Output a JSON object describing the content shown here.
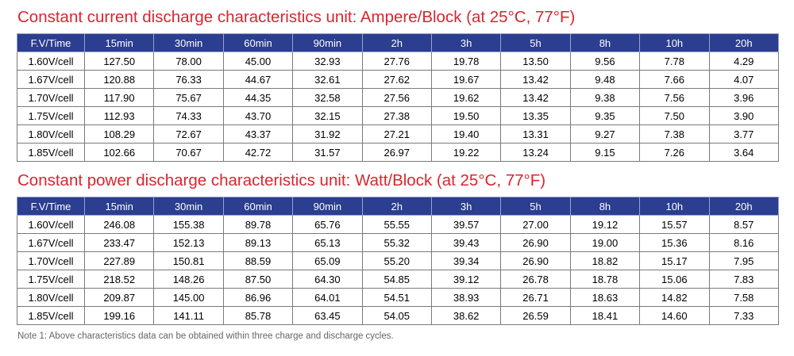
{
  "current_table": {
    "title": "Constant current discharge characteristics unit: Ampere/Block (at 25°C, 77°F)",
    "headers": [
      "F.V/Time",
      "15min",
      "30min",
      "60min",
      "90min",
      "2h",
      "3h",
      "5h",
      "8h",
      "10h",
      "20h"
    ],
    "rows": [
      [
        "1.60V/cell",
        "127.50",
        "78.00",
        "45.00",
        "32.93",
        "27.76",
        "19.78",
        "13.50",
        "9.56",
        "7.78",
        "4.29"
      ],
      [
        "1.67V/cell",
        "120.88",
        "76.33",
        "44.67",
        "32.61",
        "27.62",
        "19.67",
        "13.42",
        "9.48",
        "7.66",
        "4.07"
      ],
      [
        "1.70V/cell",
        "117.90",
        "75.67",
        "44.35",
        "32.58",
        "27.56",
        "19.62",
        "13.42",
        "9.38",
        "7.56",
        "3.96"
      ],
      [
        "1.75V/cell",
        "112.93",
        "74.33",
        "43.70",
        "32.15",
        "27.38",
        "19.50",
        "13.35",
        "9.35",
        "7.50",
        "3.90"
      ],
      [
        "1.80V/cell",
        "108.29",
        "72.67",
        "43.37",
        "31.92",
        "27.21",
        "19.40",
        "13.31",
        "9.27",
        "7.38",
        "3.77"
      ],
      [
        "1.85V/cell",
        "102.66",
        "70.67",
        "42.72",
        "31.57",
        "26.97",
        "19.22",
        "13.24",
        "9.15",
        "7.26",
        "3.64"
      ]
    ]
  },
  "power_table": {
    "title": "Constant power discharge characteristics unit: Watt/Block (at 25°C, 77°F)",
    "headers": [
      "F.V/Time",
      "15min",
      "30min",
      "60min",
      "90min",
      "2h",
      "3h",
      "5h",
      "8h",
      "10h",
      "20h"
    ],
    "rows": [
      [
        "1.60V/cell",
        "246.08",
        "155.38",
        "89.78",
        "65.76",
        "55.55",
        "39.57",
        "27.00",
        "19.12",
        "15.57",
        "8.57"
      ],
      [
        "1.67V/cell",
        "233.47",
        "152.13",
        "89.13",
        "65.13",
        "55.32",
        "39.43",
        "26.90",
        "19.00",
        "15.36",
        "8.16"
      ],
      [
        "1.70V/cell",
        "227.89",
        "150.81",
        "88.59",
        "65.09",
        "55.20",
        "39.34",
        "26.90",
        "18.82",
        "15.17",
        "7.95"
      ],
      [
        "1.75V/cell",
        "218.52",
        "148.26",
        "87.50",
        "64.30",
        "54.85",
        "39.12",
        "26.78",
        "18.78",
        "15.06",
        "7.83"
      ],
      [
        "1.80V/cell",
        "209.87",
        "145.00",
        "86.96",
        "64.01",
        "54.51",
        "38.93",
        "26.71",
        "18.63",
        "14.82",
        "7.58"
      ],
      [
        "1.85V/cell",
        "199.16",
        "141.11",
        "85.78",
        "63.45",
        "54.05",
        "38.62",
        "26.59",
        "18.41",
        "14.60",
        "7.33"
      ]
    ]
  },
  "note": "Note 1: Above characteristics data can be obtained within three charge and discharge cycles.",
  "colors": {
    "title_red": "#d8262f",
    "header_blue": "#2b3e8f"
  }
}
